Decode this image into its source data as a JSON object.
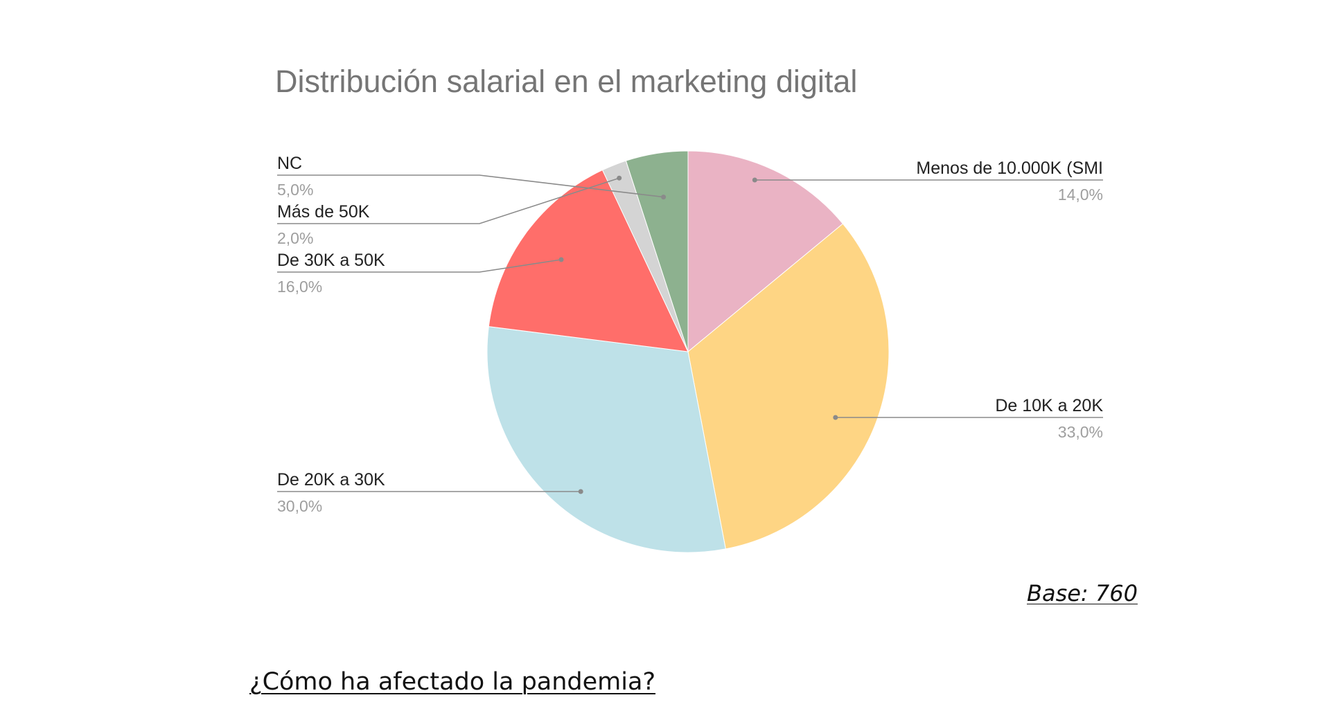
{
  "chart_data": {
    "type": "pie",
    "title": "Distribución salarial en el marketing digital",
    "slices": [
      {
        "label": "Menos de 10.000K (SMI",
        "value": 14.0,
        "pct_label": "14,0%",
        "color": "#EAB3C4"
      },
      {
        "label": "De 10K a 20K",
        "value": 33.0,
        "pct_label": "33,0%",
        "color": "#FED584"
      },
      {
        "label": "De 20K a 30K",
        "value": 30.0,
        "pct_label": "30,0%",
        "color": "#BEE1E8"
      },
      {
        "label": "De 30K a 50K",
        "value": 16.0,
        "pct_label": "16,0%",
        "color": "#FF6E6A"
      },
      {
        "label": "Más de 50K",
        "value": 2.0,
        "pct_label": "2,0%",
        "color": "#D4D4D4"
      },
      {
        "label": "NC",
        "value": 5.0,
        "pct_label": "5,0%",
        "color": "#8DB18F"
      }
    ],
    "start_angle": "12 o'clock",
    "direction": "clockwise",
    "legend": "none"
  },
  "base_note": "Base: 760",
  "section_heading": "¿Cómo ha afectado la pandemia?"
}
